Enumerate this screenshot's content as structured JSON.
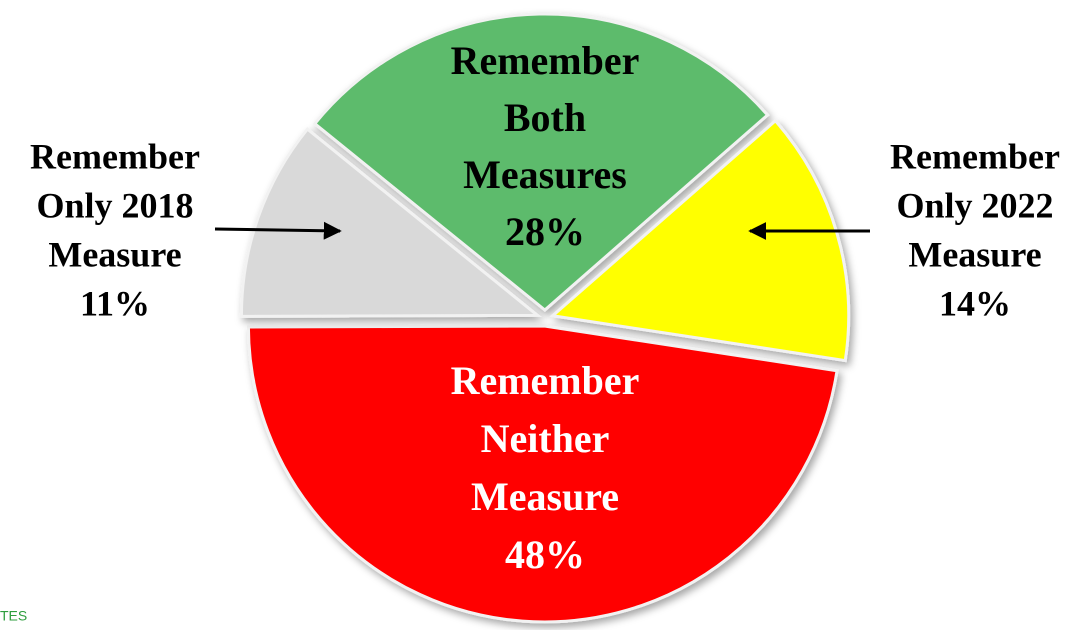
{
  "chart_data": {
    "type": "pie",
    "categories": [
      [
        "Remember",
        "Both",
        "Measures"
      ],
      [
        "Remember",
        "Only 2022",
        "Measure"
      ],
      [
        "Remember",
        "Neither",
        "Measure"
      ],
      [
        "Remember",
        "Only 2018",
        "Measure"
      ]
    ],
    "values": [
      28,
      14,
      48,
      11
    ],
    "value_labels": [
      "28%",
      "14%",
      "48%",
      "11%"
    ],
    "colors": [
      "#5dbb6c",
      "#ffff00",
      "#ff0000",
      "#d9d9d9"
    ],
    "footnote": "TES"
  }
}
